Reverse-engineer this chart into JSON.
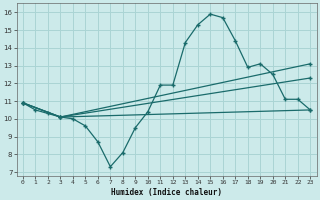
{
  "xlabel": "Humidex (Indice chaleur)",
  "bg_color": "#cceaea",
  "grid_color": "#aad4d4",
  "line_color": "#1a6b6b",
  "xlim": [
    -0.5,
    23.5
  ],
  "ylim": [
    6.8,
    16.5
  ],
  "xticks": [
    0,
    1,
    2,
    3,
    4,
    5,
    6,
    7,
    8,
    9,
    10,
    11,
    12,
    13,
    14,
    15,
    16,
    17,
    18,
    19,
    20,
    21,
    22,
    23
  ],
  "yticks": [
    7,
    8,
    9,
    10,
    11,
    12,
    13,
    14,
    15,
    16
  ],
  "line1_x": [
    0,
    1,
    2,
    3,
    4,
    5,
    6,
    7,
    8,
    9,
    10,
    11,
    12,
    13,
    14,
    15,
    16,
    17,
    18,
    19,
    20,
    21,
    22,
    23
  ],
  "line1_y": [
    10.9,
    10.5,
    10.3,
    10.1,
    10.0,
    9.6,
    8.7,
    7.3,
    8.1,
    9.5,
    10.4,
    11.9,
    11.9,
    14.3,
    15.3,
    15.9,
    15.7,
    14.4,
    12.9,
    13.1,
    12.5,
    11.1,
    11.1,
    10.5
  ],
  "line2_x": [
    0,
    3,
    23
  ],
  "line2_y": [
    10.9,
    10.1,
    10.5
  ],
  "line3_x": [
    0,
    3,
    23
  ],
  "line3_y": [
    10.9,
    10.1,
    12.3
  ],
  "line4_x": [
    0,
    3,
    23
  ],
  "line4_y": [
    10.9,
    10.1,
    13.1
  ]
}
